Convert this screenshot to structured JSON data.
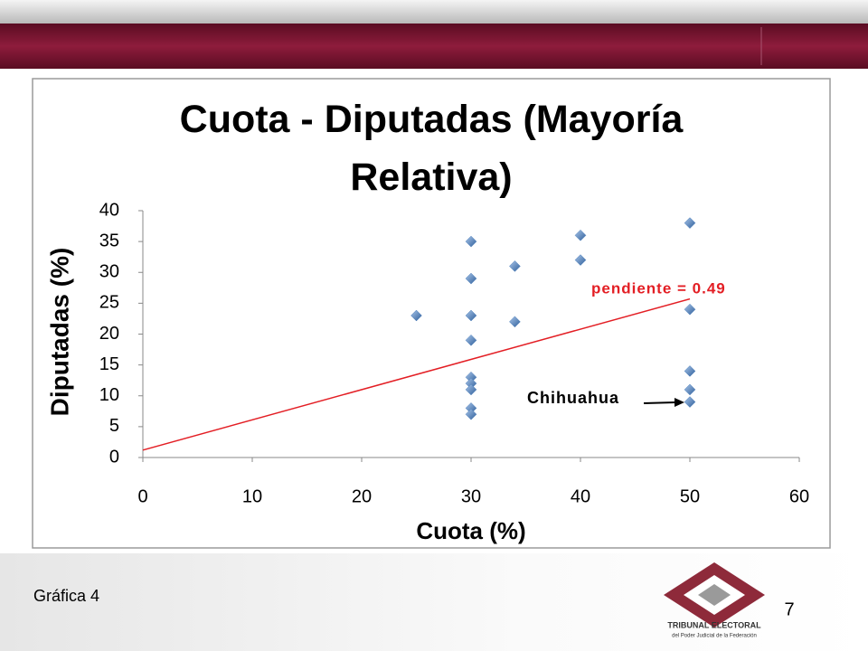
{
  "chart_data": {
    "type": "scatter",
    "title": "Cuota - Diputadas (Mayoría Relativa)",
    "x_label": "Cuota (%)",
    "y_label": "Diputadas (%)",
    "x": [
      25,
      30,
      30,
      30,
      30,
      30,
      30,
      30,
      30,
      30,
      34,
      34,
      40,
      40,
      50,
      50,
      50,
      50,
      50
    ],
    "values": [
      23,
      35,
      29,
      23,
      19,
      13,
      12,
      11,
      8,
      7,
      31,
      22,
      36,
      32,
      38,
      24,
      14,
      11,
      9
    ],
    "color": "#4f81bd",
    "trendline": {
      "x": [
        0,
        50
      ],
      "values": [
        1.2,
        25.7
      ],
      "color": "#e31e24"
    },
    "annotations": [
      "pendiente = 0.49",
      "Chihuahua"
    ],
    "xlim": [
      0,
      60
    ],
    "xticks": [
      0,
      10,
      20,
      30,
      40,
      50,
      60
    ],
    "ylim": [
      0,
      40
    ],
    "yticks": [
      0,
      5,
      10,
      15,
      20,
      25,
      30,
      35,
      40
    ],
    "grid": false
  },
  "footer": {
    "caption": "Gráfica 4",
    "page": "7",
    "logo_title": "TRIBUNAL ELECTORAL",
    "logo_subtitle": "del Poder Judicial de la Federación"
  }
}
